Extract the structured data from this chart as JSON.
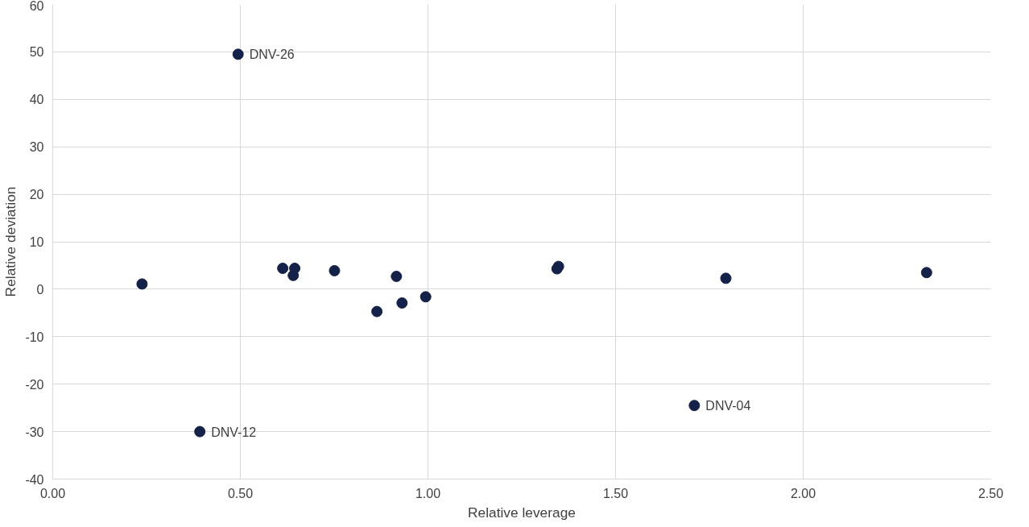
{
  "chart_data": {
    "type": "scatter",
    "xlabel": "Relative leverage",
    "ylabel": "Relative deviation",
    "x": [
      0.238,
      0.494,
      0.392,
      0.613,
      0.645,
      0.641,
      0.751,
      0.864,
      0.916,
      0.931,
      0.994,
      1.344,
      1.348,
      1.71,
      1.794,
      2.329
    ],
    "series": [
      {
        "color": "#142148",
        "values": [
          1.1,
          49.5,
          -30,
          4.4,
          4.4,
          2.9,
          3.9,
          -4.7,
          2.7,
          -2.9,
          -1.6,
          4.3,
          4.8,
          -24.5,
          2.3,
          3.5
        ]
      }
    ],
    "xlim": [
      0,
      2.5
    ],
    "xticks": [
      {
        "value": 0,
        "label": "0.00"
      },
      {
        "value": 0.5,
        "label": "0.50"
      },
      {
        "value": 1,
        "label": "1.00"
      },
      {
        "value": 1.5,
        "label": "1.50"
      },
      {
        "value": 2,
        "label": "2.00"
      },
      {
        "value": 2.5,
        "label": "2.50"
      }
    ],
    "ylim": [
      -40,
      60
    ],
    "yticks": [
      -40,
      -30,
      -20,
      -10,
      0,
      10,
      20,
      30,
      40,
      50,
      60
    ],
    "grid": true,
    "marker": "circle",
    "annotations": [
      {
        "text": "DNV-26",
        "x": 0.494,
        "y": 49.5
      },
      {
        "text": "DNV-12",
        "x": 0.392,
        "y": -30
      },
      {
        "text": "DNV-04",
        "x": 1.71,
        "y": -24.5
      }
    ]
  }
}
